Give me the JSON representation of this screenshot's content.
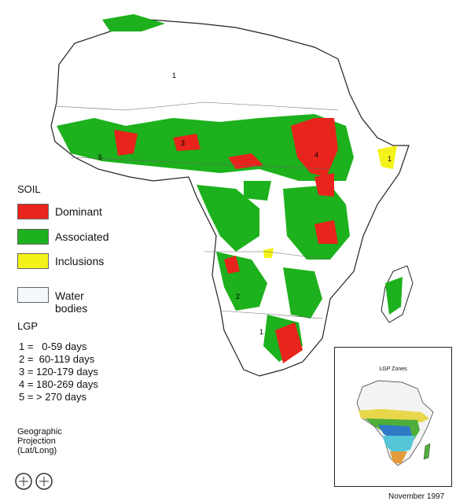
{
  "legend": {
    "soil_title": "SOIL",
    "soil_items": [
      {
        "label": "Dominant",
        "color": "#e8241c"
      },
      {
        "label": "Associated",
        "color": "#1db11d"
      },
      {
        "label": "Inclusions",
        "color": "#f5f21a"
      },
      {
        "label": "Water bodies",
        "color": "#f4f7fb"
      }
    ],
    "lgp_title": "LGP",
    "lgp_items": [
      "1 =   0-59 days",
      "2 =  60-119 days",
      "3 = 120-179 days",
      "4 = 180-269 days",
      "5 = > 270 days"
    ]
  },
  "projection_note": "Geographic Projection (Lat/Long)",
  "date": "November 1997",
  "inset": {
    "title": "LGP Zones"
  },
  "map_zone_labels": [
    "1",
    "1",
    "1",
    "2",
    "3",
    "4",
    "5"
  ]
}
